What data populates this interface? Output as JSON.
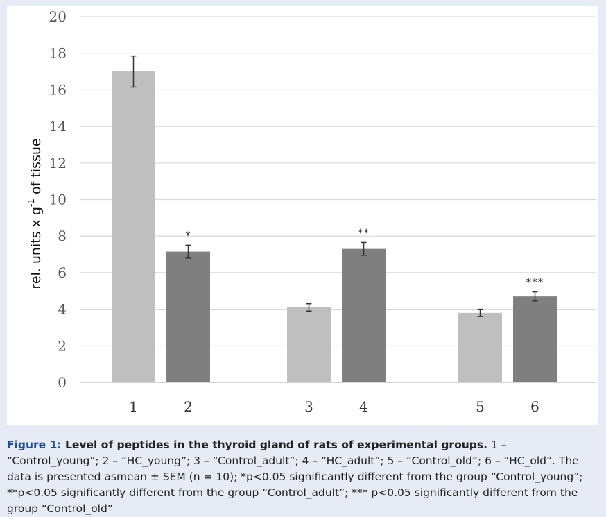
{
  "chart_data": {
    "type": "bar",
    "categories": [
      "1",
      "2",
      "3",
      "4",
      "5",
      "6"
    ],
    "values": [
      17.0,
      7.15,
      4.1,
      7.3,
      3.8,
      4.7
    ],
    "errors": [
      0.85,
      0.35,
      0.2,
      0.35,
      0.2,
      0.25
    ],
    "significance": [
      "",
      "*",
      "",
      "**",
      "",
      "***"
    ],
    "bar_colors": [
      "#bfbfbf",
      "#7f7f7f",
      "#bfbfbf",
      "#7f7f7f",
      "#bfbfbf",
      "#7f7f7f"
    ],
    "grouping": [
      [
        0,
        1
      ],
      [
        2,
        3
      ],
      [
        4,
        5
      ]
    ],
    "ylabel": "rel. units x g",
    "ylabel_superscript": "-1",
    "ylabel_suffix": " of tissue",
    "yticks": [
      "0",
      "2",
      "4",
      "6",
      "8",
      "10",
      "12",
      "14",
      "16",
      "18",
      "20"
    ],
    "ylim": [
      0,
      20
    ],
    "grid": true
  },
  "caption": {
    "figure_label": "Figure 1",
    "title": "Level of peptides in the thyroid gland of rats of experimental groups.",
    "body": "1 – “Control_young”; 2 – “HC_young”; 3 – “Control_adult”; 4 – “HC_adult”; 5 – “Control_old”; 6 – “HC_old”. The data is presented asmean ± SEM (n = 10); *p<0.05 significantly different from the group “Control_young”; **p<0.05 significantly different from the group “Control_adult”; *** p<0.05 significantly different from the group “Control_old”"
  }
}
